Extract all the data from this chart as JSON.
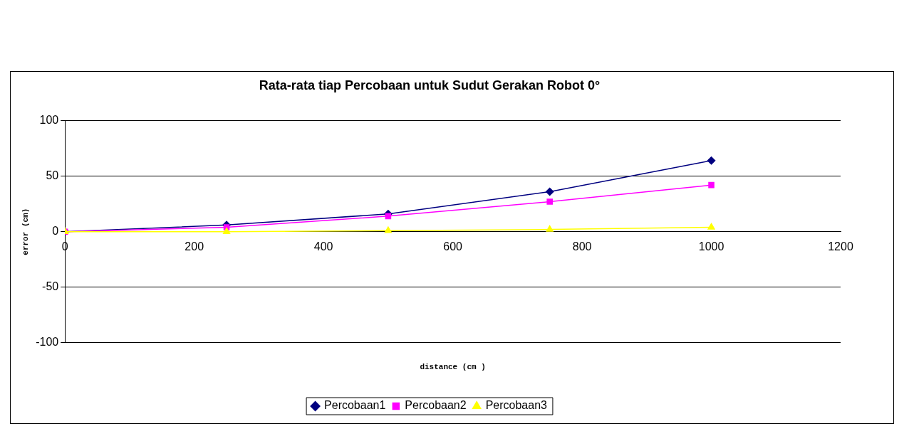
{
  "chart_data": {
    "type": "line",
    "title": "Rata-rata tiap Percobaan untuk Sudut Gerakan Robot 0°",
    "xlabel": "distance (cm )",
    "ylabel": "error (cm)",
    "x": [
      0,
      250,
      500,
      750,
      1000
    ],
    "series": [
      {
        "name": "Percobaan1",
        "color": "#000080",
        "marker": "diamond",
        "values": [
          0,
          6,
          16,
          36,
          64
        ]
      },
      {
        "name": "Percobaan2",
        "color": "#ff00ff",
        "marker": "square",
        "values": [
          0,
          4,
          14,
          27,
          42
        ]
      },
      {
        "name": "Percobaan3",
        "color": "#ffff00",
        "marker": "triangle",
        "values": [
          0,
          0,
          1,
          2,
          4
        ]
      }
    ],
    "xlim": [
      0,
      1200
    ],
    "xticks": [
      0,
      200,
      400,
      600,
      800,
      1000,
      1200
    ],
    "ylim": [
      -100,
      100
    ],
    "yticks": [
      -100,
      -50,
      0,
      50,
      100
    ],
    "grid": "y",
    "legend": "bottom",
    "line_style": "solid"
  }
}
